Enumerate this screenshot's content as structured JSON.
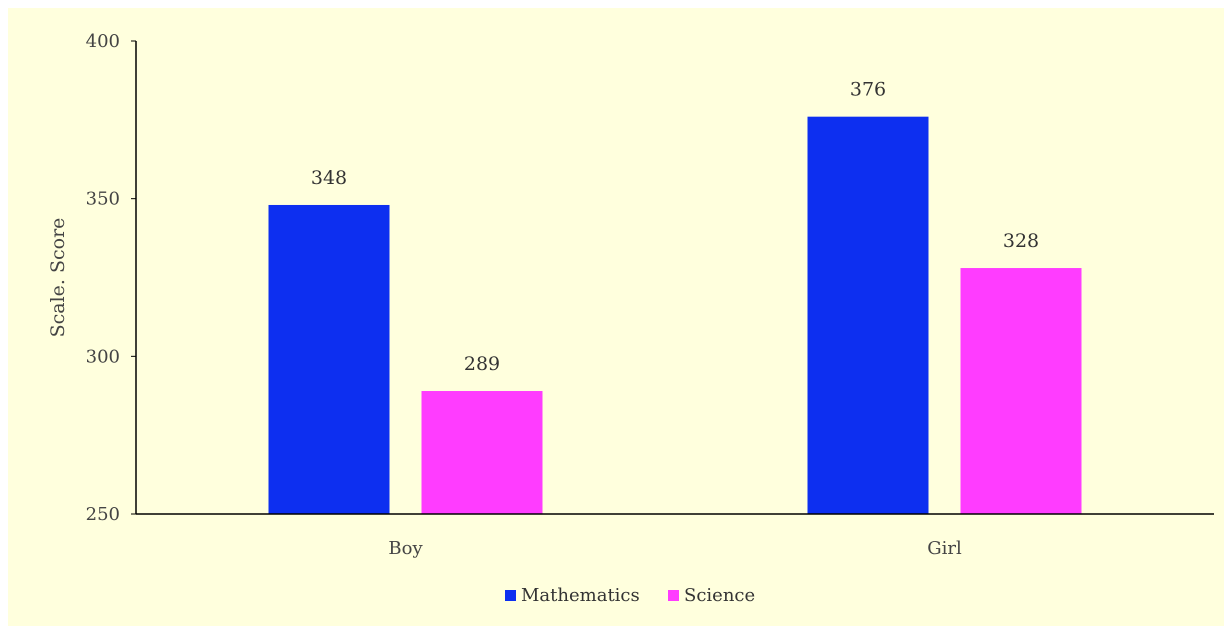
{
  "chart_data": {
    "type": "bar",
    "title": "",
    "xlabel": "",
    "ylabel": "Scale. Score",
    "categories": [
      "Boy",
      "Girl"
    ],
    "series": [
      {
        "name": "Mathematics",
        "values": [
          348,
          376
        ],
        "color": "#0d2ff0"
      },
      {
        "name": "Science",
        "values": [
          289,
          328
        ],
        "color": "#ff3cff"
      }
    ],
    "ylim": [
      250,
      400
    ],
    "yticks": [
      250,
      300,
      350,
      400
    ],
    "grid": false,
    "legend": "bottom-center",
    "background_color": "#ffffdd",
    "axis_color": "#000000"
  }
}
